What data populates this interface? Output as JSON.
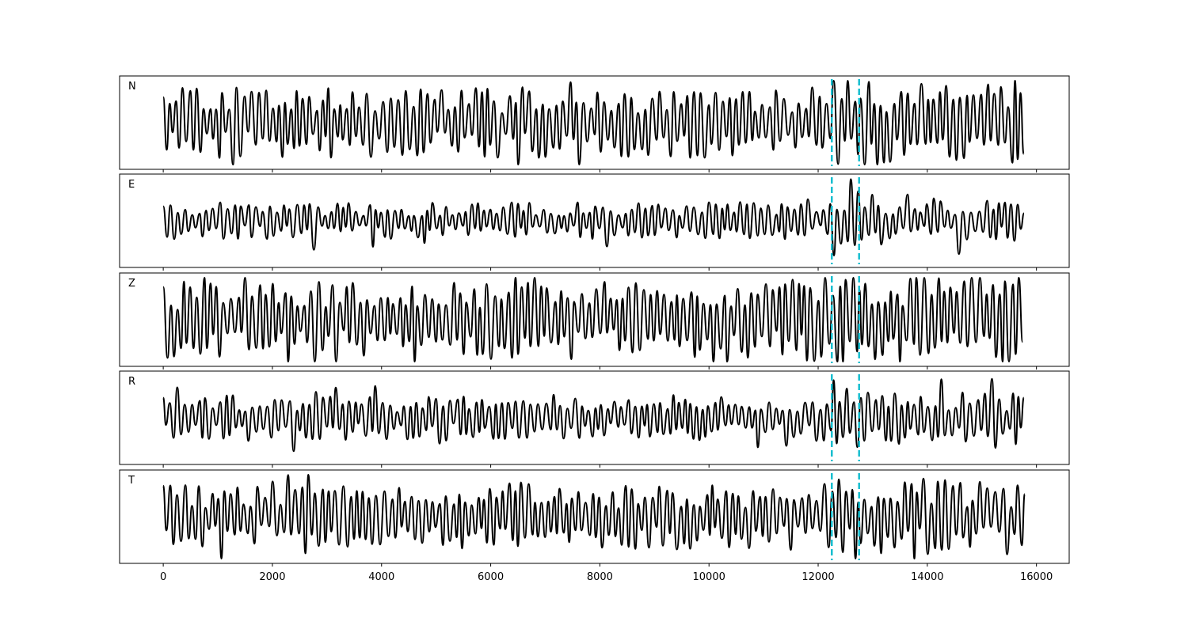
{
  "chart_data": {
    "type": "line",
    "title": "",
    "xlabel": "",
    "ylabel": "",
    "xlim": [
      -800,
      16600
    ],
    "x_ticks": [
      "0",
      "2000",
      "4000",
      "6000",
      "8000",
      "10000",
      "12000",
      "14000",
      "16000"
    ],
    "x_tick_values": [
      0,
      2000,
      4000,
      6000,
      8000,
      10000,
      12000,
      14000,
      16000
    ],
    "sample_range": [
      0,
      15800
    ],
    "grid": false,
    "shared_x": true,
    "trace_color": "#000000",
    "marker_color": "#17becf",
    "markers_x": [
      12250,
      12750
    ],
    "panels": [
      {
        "label": "N",
        "amplitude": 0.85,
        "onset": 12250,
        "burst": 1.3
      },
      {
        "label": "E",
        "amplitude": 0.45,
        "onset": 12250,
        "burst": 1.9
      },
      {
        "label": "Z",
        "amplitude": 0.95,
        "onset": 11200,
        "burst": 1.1
      },
      {
        "label": "R",
        "amplitude": 0.55,
        "onset": 12250,
        "burst": 1.8
      },
      {
        "label": "T",
        "amplitude": 0.8,
        "onset": 12250,
        "burst": 1.4
      }
    ]
  }
}
